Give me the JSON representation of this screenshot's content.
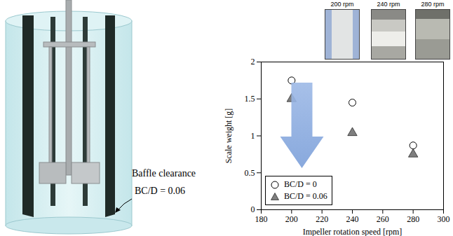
{
  "chart_data": {
    "type": "scatter",
    "xlabel": "Impeller rotation speed [rpm]",
    "ylabel": "Scale weight [g]",
    "x": [
      200,
      240,
      280
    ],
    "series": [
      {
        "name": "BC/D = 0",
        "color": "#000000",
        "marker": "open_circle",
        "values": [
          1.75,
          1.45,
          0.87
        ]
      },
      {
        "name": "BC/D = 0.06",
        "color": "#7f7f7f",
        "marker": "triangle",
        "values": [
          1.5,
          1.04,
          0.75
        ]
      }
    ],
    "xlim": [
      180,
      300
    ],
    "xticks": [
      180,
      200,
      220,
      240,
      260,
      280,
      300
    ],
    "ylim": [
      0,
      2
    ],
    "yticks": [
      0,
      0.5,
      1,
      1.5,
      2
    ],
    "grid": false,
    "legend": "lower left",
    "photo_labels": [
      "200 rpm",
      "240 rpm",
      "280 rpm"
    ],
    "annotations": [
      "Baffle clearance",
      "BC/D = 0.06"
    ]
  }
}
